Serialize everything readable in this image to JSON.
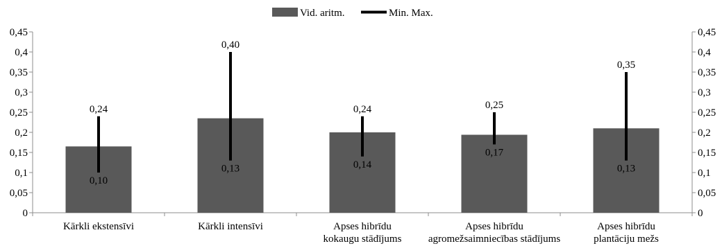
{
  "chart_data": {
    "type": "bar",
    "categories": [
      [
        "Kārkli ekstensīvi"
      ],
      [
        "Kārkli intensīvi"
      ],
      [
        "Apses hibrīdu",
        "kokaugu stādījums"
      ],
      [
        "Apses hibrīdu",
        "agromežsaimniecības stādījums"
      ],
      [
        "Apses hibrīdu",
        "plantāciju mežs"
      ]
    ],
    "series": [
      {
        "name": "Vid. aritm.",
        "values": [
          0.165,
          0.235,
          0.2,
          0.194,
          0.21
        ]
      }
    ],
    "ranges": {
      "name": "Min. Max.",
      "min": [
        0.1,
        0.13,
        0.14,
        0.17,
        0.13
      ],
      "max": [
        0.24,
        0.4,
        0.24,
        0.25,
        0.35
      ],
      "min_labels": [
        "0,10",
        "0,13",
        "0,14",
        "0,17",
        "0,13"
      ],
      "max_labels": [
        "0,24",
        "0,40",
        "0,24",
        "0,25",
        "0,35"
      ]
    },
    "yticks": [
      0,
      0.05,
      0.1,
      0.15,
      0.2,
      0.25,
      0.3,
      0.35,
      0.4,
      0.45
    ],
    "ytick_labels": [
      "0",
      "0,05",
      "0,1",
      "0,15",
      "0,2",
      "0,25",
      "0,3",
      "0,35",
      "0,4",
      "0,45"
    ],
    "ylim": [
      0,
      0.45
    ],
    "secondary_axis": true,
    "grid": false,
    "legend": "top-center",
    "colors": {
      "bar": "#595959",
      "range": "#000000",
      "axis": "#8c8c8c"
    }
  }
}
